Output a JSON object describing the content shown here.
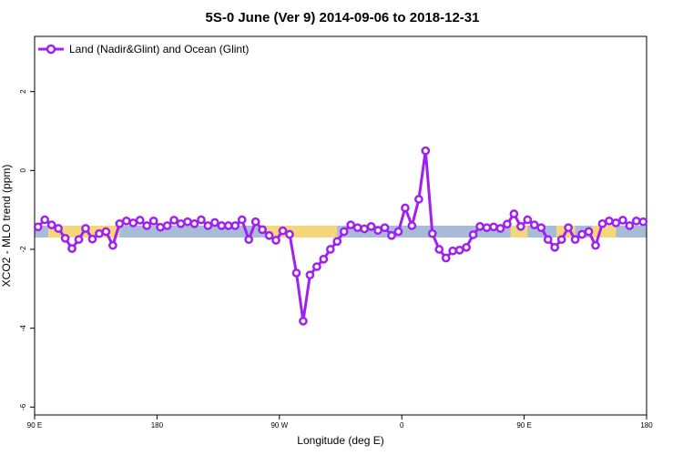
{
  "chart_data": {
    "type": "line",
    "title": "5S-0 June (Ver 9)   2014-09-06 to 2018-12-31",
    "xlabel": "Longitude (deg E)",
    "ylabel": "XCO2 - MLO trend (ppm)",
    "xlim": [
      90,
      450
    ],
    "ylim": [
      -6.2,
      3.4
    ],
    "x_ticks": [
      90,
      162,
      234,
      306,
      378,
      450
    ],
    "x_tick_labels": [
      "90 E",
      "180",
      "90 W",
      "0",
      "90 E",
      "180"
    ],
    "y_ticks": [
      -6,
      -4,
      -2,
      0,
      2
    ],
    "y_tick_labels": [
      "-6",
      "-4",
      "-2",
      "0",
      "2"
    ],
    "legend": {
      "position": "top-left",
      "entries": [
        "Land (Nadir&Glint) and Ocean (Glint)"
      ]
    },
    "background_band": {
      "y_range": [
        -1.7,
        -1.4
      ],
      "ocean_color": "#a8bcd8",
      "land_color": "#f5d77b",
      "land_segments": [
        [
          98,
          140
        ],
        [
          226,
          268
        ],
        [
          370,
          380
        ],
        [
          397,
          408
        ],
        [
          418,
          432
        ]
      ]
    },
    "series": [
      {
        "name": "Land (Nadir&Glint) and Ocean (Glint)",
        "color": "#a020f0",
        "x": [
          92,
          96,
          100,
          104,
          108,
          112,
          116,
          120,
          124,
          128,
          132,
          136,
          140,
          144,
          148,
          152,
          156,
          160,
          164,
          168,
          172,
          176,
          180,
          184,
          188,
          192,
          196,
          200,
          204,
          208,
          212,
          216,
          220,
          224,
          228,
          232,
          236,
          240,
          244,
          248,
          252,
          256,
          260,
          264,
          268,
          272,
          276,
          280,
          284,
          288,
          292,
          296,
          300,
          304,
          308,
          312,
          316,
          320,
          324,
          328,
          332,
          336,
          340,
          344,
          348,
          352,
          356,
          360,
          364,
          368,
          372,
          376,
          380,
          384,
          388,
          392,
          396,
          400,
          404,
          408,
          412,
          416,
          420,
          424,
          428,
          432,
          436,
          440,
          444,
          448
        ],
        "y": [
          -1.43,
          -1.25,
          -1.38,
          -1.47,
          -1.72,
          -1.98,
          -1.75,
          -1.47,
          -1.74,
          -1.6,
          -1.55,
          -1.9,
          -1.35,
          -1.28,
          -1.33,
          -1.26,
          -1.4,
          -1.28,
          -1.44,
          -1.4,
          -1.26,
          -1.35,
          -1.3,
          -1.35,
          -1.25,
          -1.4,
          -1.32,
          -1.4,
          -1.4,
          -1.4,
          -1.25,
          -1.75,
          -1.3,
          -1.5,
          -1.65,
          -1.77,
          -1.53,
          -1.62,
          -2.6,
          -3.82,
          -2.65,
          -2.44,
          -2.25,
          -2.0,
          -1.8,
          -1.55,
          -1.38,
          -1.45,
          -1.48,
          -1.42,
          -1.52,
          -1.45,
          -1.65,
          -1.55,
          -0.95,
          -1.4,
          -0.73,
          0.5,
          -1.6,
          -2.0,
          -2.22,
          -2.04,
          -2.02,
          -1.95,
          -1.63,
          -1.42,
          -1.45,
          -1.43,
          -1.47,
          -1.36,
          -1.1,
          -1.42,
          -1.25,
          -1.38,
          -1.45,
          -1.75,
          -1.95,
          -1.75,
          -1.45,
          -1.75,
          -1.62,
          -1.55,
          -1.9,
          -1.35,
          -1.28,
          -1.33,
          -1.26,
          -1.4,
          -1.28,
          -1.3
        ]
      }
    ]
  }
}
